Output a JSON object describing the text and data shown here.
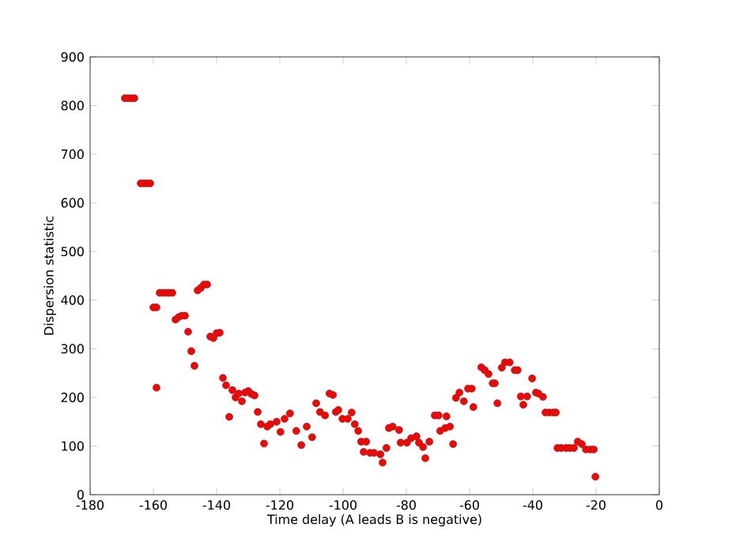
{
  "chart_data": {
    "type": "scatter",
    "xlabel": "Time delay (A leads B is negative)",
    "ylabel": "Dispersion statistic",
    "marker": "circle",
    "xlim": [
      -180,
      0
    ],
    "ylim": [
      0,
      900
    ],
    "xticks": [
      -180,
      -160,
      -140,
      -120,
      -100,
      -80,
      -60,
      -40,
      -20,
      0
    ],
    "yticks": [
      0,
      100,
      200,
      300,
      400,
      500,
      600,
      700,
      800,
      900
    ],
    "series": [
      {
        "color": "#ff0000",
        "x": [
          -169,
          -168,
          -167,
          -166,
          -164,
          -163,
          -162,
          -161,
          -160,
          -159,
          -159,
          -158,
          -157,
          -156,
          -155,
          -154,
          -153,
          -152,
          -151,
          -150,
          -149,
          -148,
          -147,
          -146,
          -145,
          -144,
          -143,
          -142,
          -141,
          -140,
          -139,
          -138,
          -137,
          -136,
          -135,
          -134,
          -133,
          -132,
          -131,
          -130,
          -129,
          -128,
          -127,
          -126,
          -125,
          -124,
          -123,
          -121,
          -119.8,
          -118.5,
          -116.8,
          -114.8,
          -113.2,
          -111.5,
          -109.8,
          -108.5,
          -107.3,
          -105.7,
          -104.3,
          -103.2,
          -102.3,
          -101.5,
          -100.2,
          -98.5,
          -97.3,
          -96.3,
          -95.2,
          -94.3,
          -92.7,
          -93.5,
          -91.5,
          -90.2,
          -88.2,
          -87.5,
          -86.3,
          -85.5,
          -84.3,
          -82.3,
          -81.8,
          -79.8,
          -78.5,
          -76.8,
          -76,
          -74.7,
          -74,
          -72.7,
          -71,
          -69.8,
          -69.3,
          -67.7,
          -67.3,
          -66.2,
          -65.2,
          -64.3,
          -63.2,
          -61.8,
          -60.5,
          -59.3,
          -58.8,
          -56.3,
          -55.2,
          -54,
          -52.7,
          -52,
          -51.2,
          -49.8,
          -48.8,
          -47.3,
          -45.7,
          -44.8,
          -43.8,
          -43,
          -41.8,
          -40.2,
          -39,
          -38.2,
          -36.8,
          -36,
          -34.8,
          -33.5,
          -32.7,
          -32.2,
          -31,
          -29.5,
          -28.3,
          -27,
          -25.8,
          -24.5,
          -23.2,
          -21.8,
          -20.7,
          -20.2
        ],
        "values": [
          815,
          815,
          815,
          815,
          640,
          640,
          640,
          640,
          385,
          385,
          220,
          415,
          415,
          415,
          415,
          415,
          360,
          365,
          368,
          368,
          335,
          295,
          265,
          420,
          425,
          432,
          432,
          325,
          322,
          332,
          333,
          240,
          225,
          160,
          215,
          200,
          208,
          192,
          210,
          213,
          207,
          204,
          170,
          145,
          105,
          140,
          145,
          150,
          129,
          156,
          167,
          131,
          102,
          140,
          118,
          188,
          170,
          163,
          208,
          205,
          170,
          174,
          156,
          156,
          169,
          145,
          131,
          109,
          109,
          88,
          86,
          86,
          83,
          66,
          96,
          137,
          140,
          133,
          107,
          107,
          116,
          120,
          107,
          98,
          75,
          109,
          163,
          163,
          131,
          137,
          161,
          140,
          104,
          199,
          210,
          192,
          218,
          218,
          180,
          262,
          256,
          248,
          229,
          229,
          188,
          261,
          272,
          272,
          256,
          256,
          202,
          185,
          202,
          239,
          210,
          208,
          201,
          169,
          169,
          169,
          169,
          96,
          96,
          96,
          96,
          96,
          109,
          104,
          93,
          93,
          93,
          37
        ]
      }
    ]
  }
}
